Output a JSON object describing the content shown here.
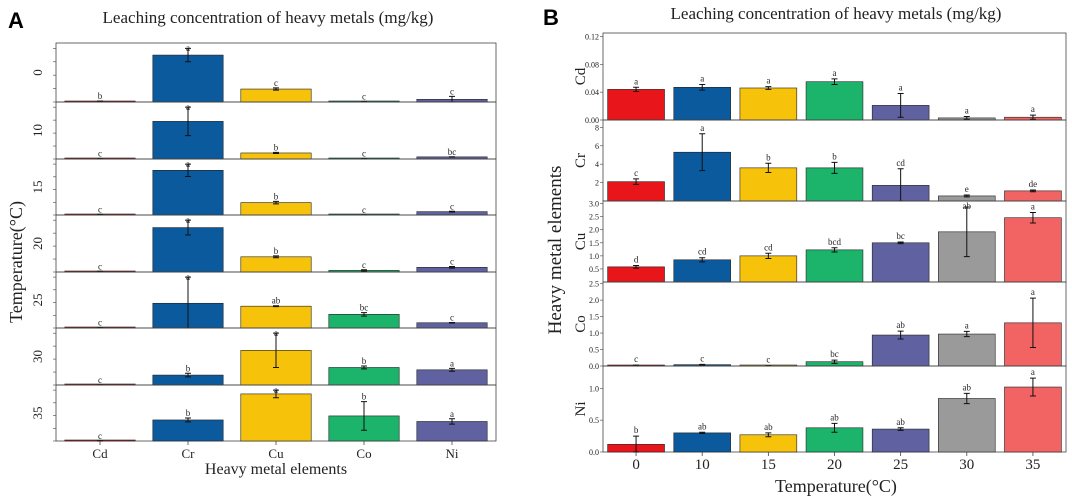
{
  "colors": {
    "elements": [
      "#e8151b",
      "#0b5a9e",
      "#f6c20a",
      "#1cb36a",
      "#5f61a1"
    ],
    "temperatures": [
      "#e8151b",
      "#0b5a9e",
      "#f6c20a",
      "#1cb36a",
      "#5f61a1",
      "#9a9a9a",
      "#f26363"
    ]
  },
  "chart_data": [
    {
      "panel": "A",
      "type": "bar",
      "title": "Leaching concentration of heavy metals (mg/kg)",
      "xlabel": "Heavy metal elements",
      "ylabel": "Temperature(°C)",
      "categories": [
        "Cd",
        "Cr",
        "Cu",
        "Co",
        "Ni"
      ],
      "series": [
        {
          "name": "0",
          "values": [
            0.044,
            2.1,
            0.58,
            0.02,
            0.12
          ],
          "errors": [
            0.003,
            0.3,
            0.05,
            0.005,
            0.13
          ],
          "letters": [
            "b",
            "a",
            "c",
            "c",
            "c"
          ]
        },
        {
          "name": "10",
          "values": [
            0.047,
            5.3,
            0.85,
            0.04,
            0.3
          ],
          "errors": [
            0.004,
            2.0,
            0.08,
            0.01,
            0.01
          ],
          "letters": [
            "c",
            "a",
            "b",
            "c",
            "bc"
          ]
        },
        {
          "name": "15",
          "values": [
            0.046,
            3.6,
            1.0,
            0.01,
            0.27
          ],
          "errors": [
            0.002,
            0.5,
            0.1,
            0.003,
            0.03
          ],
          "letters": [
            "c",
            "a",
            "b",
            "c",
            "c"
          ]
        },
        {
          "name": "20",
          "values": [
            0.055,
            3.6,
            1.23,
            0.13,
            0.38
          ],
          "errors": [
            0.004,
            0.6,
            0.08,
            0.05,
            0.07
          ],
          "letters": [
            "c",
            "a",
            "b",
            "c",
            "c"
          ]
        },
        {
          "name": "25",
          "values": [
            0.021,
            1.7,
            1.5,
            0.94,
            0.36
          ],
          "errors": [
            0.017,
            1.8,
            0.03,
            0.12,
            0.02
          ],
          "letters": [
            "c",
            "a",
            "ab",
            "bc",
            "c"
          ]
        },
        {
          "name": "30",
          "values": [
            0.003,
            0.55,
            1.92,
            0.97,
            0.84
          ],
          "errors": [
            0.002,
            0.1,
            0.95,
            0.08,
            0.08
          ],
          "letters": [
            "c",
            "b",
            "a",
            "b",
            "a"
          ]
        },
        {
          "name": "35",
          "values": [
            0.004,
            1.1,
            2.46,
            1.31,
            1.02
          ],
          "errors": [
            0.003,
            0.1,
            0.2,
            0.75,
            0.14
          ],
          "letters": [
            "c",
            "b",
            "a",
            "b",
            "a"
          ]
        }
      ]
    },
    {
      "panel": "B",
      "type": "bar",
      "title": "Leaching concentration of heavy metals (mg/kg)",
      "xlabel": "Temperature(°C)",
      "ylabel": "Heavy metal elements",
      "categories": [
        "0",
        "10",
        "15",
        "20",
        "25",
        "30",
        "35"
      ],
      "series": [
        {
          "name": "Cd",
          "ylim": [
            0,
            0.125
          ],
          "yticks": [
            "0.12",
            "0.08",
            "0.04",
            "0.00"
          ],
          "values": [
            0.044,
            0.047,
            0.046,
            0.055,
            0.021,
            0.003,
            0.004
          ],
          "errors": [
            0.003,
            0.004,
            0.002,
            0.004,
            0.017,
            0.002,
            0.003
          ],
          "letters": [
            "a",
            "a",
            "a",
            "a",
            "a",
            "a",
            "a"
          ]
        },
        {
          "name": "Cr",
          "ylim": [
            0,
            8.8
          ],
          "yticks": [
            "8",
            "6",
            "4",
            "2"
          ],
          "values": [
            2.1,
            5.3,
            3.6,
            3.6,
            1.7,
            0.55,
            1.1
          ],
          "errors": [
            0.3,
            2.0,
            0.5,
            0.6,
            1.8,
            0.1,
            0.1
          ],
          "letters": [
            "c",
            "a",
            "b",
            "b",
            "cd",
            "e",
            "de"
          ]
        },
        {
          "name": "Cu",
          "ylim": [
            0,
            3.1
          ],
          "yticks": [
            "3.0",
            "2.5",
            "2.0",
            "1.5",
            "1.0",
            "0.5"
          ],
          "values": [
            0.58,
            0.85,
            1.0,
            1.23,
            1.5,
            1.92,
            2.46
          ],
          "errors": [
            0.05,
            0.08,
            0.1,
            0.08,
            0.03,
            0.95,
            0.2
          ],
          "letters": [
            "d",
            "cd",
            "cd",
            "bcd",
            "bc",
            "ab",
            "a"
          ]
        },
        {
          "name": "Co",
          "ylim": [
            0,
            2.55
          ],
          "yticks": [
            "2.5",
            "2.0",
            "1.5",
            "1.0",
            "0.5",
            "0.0"
          ],
          "values": [
            0.02,
            0.04,
            0.01,
            0.13,
            0.94,
            0.97,
            1.31
          ],
          "errors": [
            0.005,
            0.01,
            0.003,
            0.05,
            0.12,
            0.08,
            0.75
          ],
          "letters": [
            "c",
            "c",
            "c",
            "bc",
            "ab",
            "a",
            "a"
          ]
        },
        {
          "name": "Ni",
          "ylim": [
            0,
            1.35
          ],
          "yticks": [
            "1.0",
            "0.5",
            "0.0"
          ],
          "values": [
            0.12,
            0.3,
            0.27,
            0.38,
            0.36,
            0.84,
            1.02
          ],
          "errors": [
            0.13,
            0.01,
            0.03,
            0.07,
            0.02,
            0.08,
            0.14
          ],
          "letters": [
            "b",
            "ab",
            "ab",
            "ab",
            "ab",
            "ab",
            "a"
          ]
        }
      ]
    }
  ]
}
